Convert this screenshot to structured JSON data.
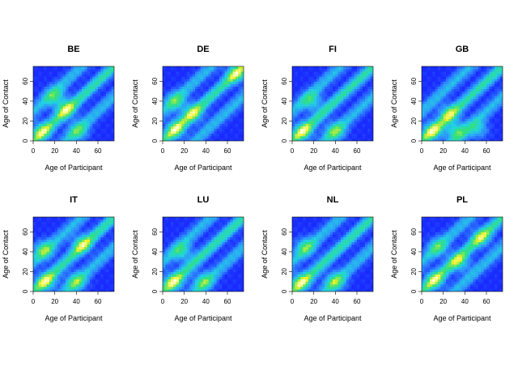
{
  "chart_data": [
    {
      "type": "heatmap",
      "title": "BE",
      "xlabel": "Age of Participant",
      "ylabel": "Age of Contact",
      "xlim": [
        0,
        75
      ],
      "ylim": [
        0,
        75
      ],
      "xticks": [
        "0",
        "20",
        "40",
        "60"
      ],
      "yticks": [
        "0",
        "20",
        "40",
        "60"
      ],
      "colorscale": [
        "#1a2bff",
        "#2f8cff",
        "#22d3e0",
        "#33e07a",
        "#f2f227",
        "#ffffff"
      ],
      "hotspots": [
        {
          "x": 8,
          "y": 10,
          "v": 0.9
        },
        {
          "x": 30,
          "y": 32,
          "v": 0.9
        },
        {
          "x": 42,
          "y": 10,
          "v": 0.8
        },
        {
          "x": 20,
          "y": 45,
          "v": 0.8
        }
      ]
    },
    {
      "type": "heatmap",
      "title": "DE",
      "xlabel": "Age of Participant",
      "ylabel": "Age of Contact",
      "xlim": [
        0,
        75
      ],
      "ylim": [
        0,
        75
      ],
      "xticks": [
        "0",
        "20",
        "40",
        "60"
      ],
      "yticks": [
        "0",
        "20",
        "40",
        "60"
      ],
      "colorscale": [
        "#1a2bff",
        "#2f8cff",
        "#22d3e0",
        "#33e07a",
        "#f2f227",
        "#ffffff"
      ],
      "hotspots": [
        {
          "x": 12,
          "y": 12,
          "v": 0.95
        },
        {
          "x": 28,
          "y": 28,
          "v": 0.85
        },
        {
          "x": 68,
          "y": 68,
          "v": 0.9
        },
        {
          "x": 12,
          "y": 40,
          "v": 0.8
        }
      ]
    },
    {
      "type": "heatmap",
      "title": "FI",
      "xlabel": "Age of Participant",
      "ylabel": "Age of Contact",
      "xlim": [
        0,
        75
      ],
      "ylim": [
        0,
        75
      ],
      "xticks": [
        "0",
        "20",
        "40",
        "60"
      ],
      "yticks": [
        "0",
        "20",
        "40",
        "60"
      ],
      "colorscale": [
        "#1a2bff",
        "#2f8cff",
        "#22d3e0",
        "#33e07a",
        "#f2f227",
        "#ffffff"
      ],
      "hotspots": [
        {
          "x": 10,
          "y": 10,
          "v": 0.95
        },
        {
          "x": 40,
          "y": 10,
          "v": 0.9
        },
        {
          "x": 18,
          "y": 40,
          "v": 0.8
        }
      ]
    },
    {
      "type": "heatmap",
      "title": "GB",
      "xlabel": "Age of Participant",
      "ylabel": "Age of Contact",
      "xlim": [
        0,
        75
      ],
      "ylim": [
        0,
        75
      ],
      "xticks": [
        "0",
        "20",
        "40",
        "60"
      ],
      "yticks": [
        "0",
        "20",
        "40",
        "60"
      ],
      "colorscale": [
        "#1a2bff",
        "#2f8cff",
        "#22d3e0",
        "#33e07a",
        "#f2f227",
        "#ffffff"
      ],
      "hotspots": [
        {
          "x": 10,
          "y": 10,
          "v": 0.95
        },
        {
          "x": 32,
          "y": 10,
          "v": 0.9
        },
        {
          "x": 52,
          "y": 12,
          "v": 0.7
        },
        {
          "x": 25,
          "y": 28,
          "v": 0.8
        }
      ]
    },
    {
      "type": "heatmap",
      "title": "IT",
      "xlabel": "Age of Participant",
      "ylabel": "Age of Contact",
      "xlim": [
        0,
        75
      ],
      "ylim": [
        0,
        75
      ],
      "xticks": [
        "0",
        "20",
        "40",
        "60"
      ],
      "yticks": [
        "0",
        "20",
        "40",
        "60"
      ],
      "colorscale": [
        "#1a2bff",
        "#2f8cff",
        "#22d3e0",
        "#33e07a",
        "#f2f227",
        "#ffffff"
      ],
      "hotspots": [
        {
          "x": 12,
          "y": 10,
          "v": 0.95
        },
        {
          "x": 10,
          "y": 42,
          "v": 0.95
        },
        {
          "x": 40,
          "y": 10,
          "v": 0.9
        },
        {
          "x": 45,
          "y": 48,
          "v": 0.9
        }
      ]
    },
    {
      "type": "heatmap",
      "title": "LU",
      "xlabel": "Age of Participant",
      "ylabel": "Age of Contact",
      "xlim": [
        0,
        75
      ],
      "ylim": [
        0,
        75
      ],
      "xticks": [
        "0",
        "20",
        "40",
        "60"
      ],
      "yticks": [
        "0",
        "20",
        "40",
        "60"
      ],
      "colorscale": [
        "#1a2bff",
        "#2f8cff",
        "#22d3e0",
        "#33e07a",
        "#f2f227",
        "#ffffff"
      ],
      "hotspots": [
        {
          "x": 10,
          "y": 10,
          "v": 0.95
        },
        {
          "x": 38,
          "y": 10,
          "v": 0.85
        },
        {
          "x": 18,
          "y": 40,
          "v": 0.8
        }
      ]
    },
    {
      "type": "heatmap",
      "title": "NL",
      "xlabel": "Age of Participant",
      "ylabel": "Age of Contact",
      "xlim": [
        0,
        75
      ],
      "ylim": [
        0,
        75
      ],
      "xticks": [
        "0",
        "20",
        "40",
        "60"
      ],
      "yticks": [
        "0",
        "20",
        "40",
        "60"
      ],
      "colorscale": [
        "#1a2bff",
        "#2f8cff",
        "#22d3e0",
        "#33e07a",
        "#f2f227",
        "#ffffff"
      ],
      "hotspots": [
        {
          "x": 8,
          "y": 10,
          "v": 0.95
        },
        {
          "x": 40,
          "y": 10,
          "v": 0.95
        },
        {
          "x": 12,
          "y": 45,
          "v": 0.85
        }
      ]
    },
    {
      "type": "heatmap",
      "title": "PL",
      "xlabel": "Age of Participant",
      "ylabel": "Age of Contact",
      "xlim": [
        0,
        75
      ],
      "ylim": [
        0,
        75
      ],
      "xticks": [
        "0",
        "20",
        "40",
        "60"
      ],
      "yticks": [
        "0",
        "20",
        "40",
        "60"
      ],
      "colorscale": [
        "#1a2bff",
        "#2f8cff",
        "#22d3e0",
        "#33e07a",
        "#f2f227",
        "#ffffff"
      ],
      "hotspots": [
        {
          "x": 12,
          "y": 12,
          "v": 0.9
        },
        {
          "x": 35,
          "y": 30,
          "v": 0.85
        },
        {
          "x": 55,
          "y": 55,
          "v": 0.8
        },
        {
          "x": 15,
          "y": 45,
          "v": 0.75
        }
      ]
    }
  ]
}
